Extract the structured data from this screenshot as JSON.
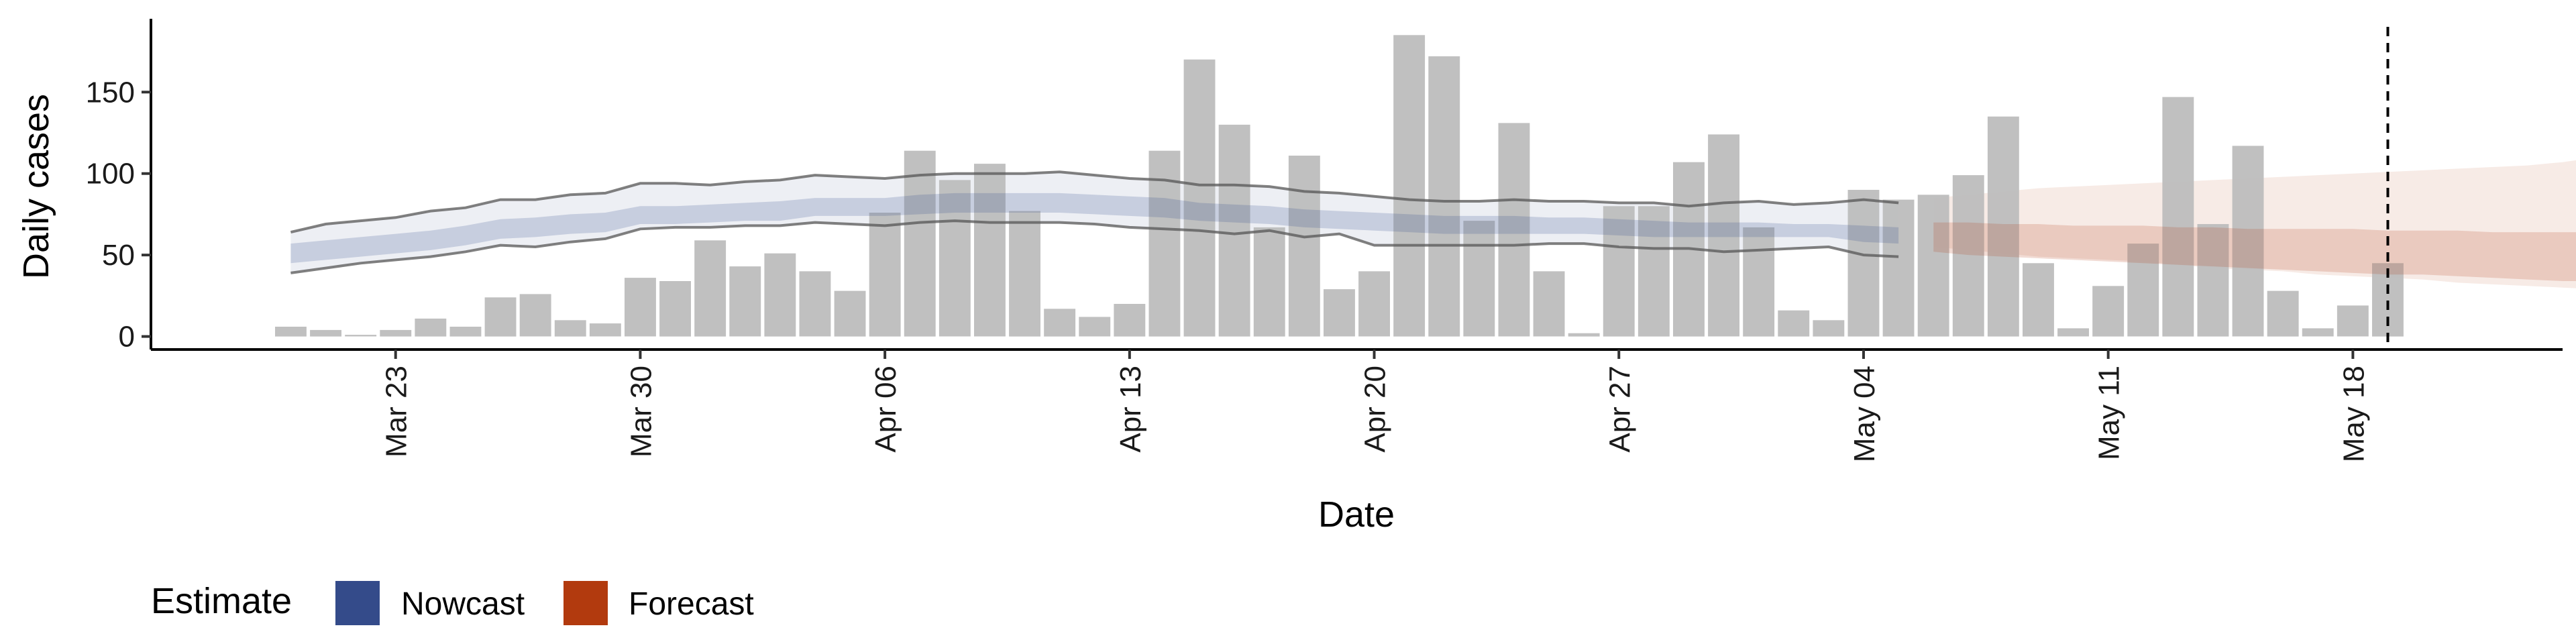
{
  "chart_data": {
    "type": "bar",
    "title": "",
    "xlabel": "Date",
    "ylabel": "Daily cases",
    "ylim": [
      -8,
      195
    ],
    "yticks": [
      0,
      50,
      100,
      150
    ],
    "x_range": [
      "2020-03-16",
      "2020-05-24"
    ],
    "x_tick_dates": [
      "2020-03-23",
      "2020-03-30",
      "2020-04-06",
      "2020-04-13",
      "2020-04-20",
      "2020-04-27",
      "2020-05-04",
      "2020-05-11",
      "2020-05-18"
    ],
    "x_tick_labels": [
      "Mar 23",
      "Mar 30",
      "Apr 06",
      "Apr 13",
      "Apr 20",
      "Apr 27",
      "May 04",
      "May 11",
      "May 18"
    ],
    "grid": false,
    "legend_position": "bottom-left",
    "legend": {
      "title": "Estimate",
      "entries": [
        {
          "label": "Nowcast",
          "color": "#344B8A"
        },
        {
          "label": "Forecast",
          "color": "#B23A0E"
        }
      ]
    },
    "vline_date": "2020-05-19",
    "bars": {
      "start_date": "2020-03-20",
      "color": "#bdbdbd",
      "values": [
        6,
        4,
        1,
        4,
        11,
        6,
        24,
        26,
        10,
        8,
        36,
        34,
        59,
        43,
        51,
        40,
        28,
        76,
        114,
        96,
        106,
        77,
        17,
        12,
        20,
        114,
        170,
        130,
        67,
        111,
        29,
        40,
        185,
        172,
        71,
        131,
        40,
        2,
        80,
        80,
        107,
        124,
        67,
        16,
        10,
        90,
        84,
        87,
        99,
        135,
        45,
        5,
        31,
        57,
        147,
        69,
        117,
        28,
        5,
        19,
        45
      ]
    },
    "nowcast": {
      "start_date": "2020-03-20",
      "color": "#344B8A",
      "outer_upper": [
        64,
        69,
        71,
        73,
        77,
        79,
        84,
        84,
        87,
        88,
        94,
        94,
        93,
        95,
        96,
        99,
        98,
        97,
        99,
        100,
        100,
        100,
        101,
        99,
        97,
        96,
        93,
        93,
        92,
        89,
        88,
        86,
        84,
        83,
        83,
        84,
        83,
        83,
        82,
        82,
        80,
        82,
        83,
        81,
        82,
        84,
        82
      ],
      "outer_lower": [
        39,
        42,
        45,
        47,
        49,
        52,
        56,
        55,
        58,
        60,
        66,
        67,
        67,
        68,
        68,
        70,
        69,
        68,
        70,
        71,
        70,
        70,
        70,
        69,
        67,
        66,
        65,
        63,
        65,
        61,
        63,
        56,
        56,
        56,
        56,
        56,
        57,
        57,
        55,
        54,
        54,
        52,
        53,
        54,
        55,
        50,
        49
      ],
      "mid_upper": [
        57,
        59,
        61,
        63,
        65,
        68,
        72,
        73,
        75,
        76,
        80,
        80,
        81,
        82,
        83,
        85,
        85,
        85,
        87,
        88,
        88,
        88,
        88,
        87,
        86,
        85,
        82,
        81,
        80,
        78,
        77,
        76,
        75,
        74,
        74,
        74,
        73,
        73,
        72,
        71,
        70,
        70,
        70,
        69,
        69,
        68,
        67
      ],
      "mid_lower": [
        45,
        47,
        49,
        51,
        53,
        56,
        60,
        61,
        63,
        64,
        69,
        69,
        70,
        71,
        71,
        74,
        74,
        74,
        75,
        76,
        76,
        76,
        76,
        75,
        74,
        73,
        71,
        70,
        69,
        67,
        66,
        65,
        64,
        63,
        63,
        63,
        63,
        63,
        62,
        61,
        61,
        61,
        61,
        61,
        61,
        58,
        57
      ]
    },
    "forecast": {
      "start_date": "2020-05-06",
      "color": "#B23A0E",
      "outer_upper": [
        85,
        87,
        89,
        91,
        92,
        93,
        94,
        95,
        96,
        97,
        98,
        99,
        100,
        101,
        102,
        103,
        104,
        105,
        107,
        110
      ],
      "outer_lower": [
        55,
        53,
        51,
        49,
        48,
        47,
        46,
        44,
        42,
        41,
        40,
        38,
        37,
        36,
        35,
        33,
        32,
        31,
        30,
        29
      ],
      "mid_upper": [
        70,
        70,
        69,
        69,
        68,
        68,
        68,
        67,
        67,
        66,
        66,
        66,
        66,
        65,
        65,
        65,
        64,
        64,
        64,
        64
      ],
      "mid_lower": [
        52,
        50,
        49,
        48,
        47,
        46,
        45,
        44,
        43,
        42,
        41,
        40,
        39,
        38,
        38,
        37,
        36,
        35,
        34,
        34
      ]
    }
  }
}
